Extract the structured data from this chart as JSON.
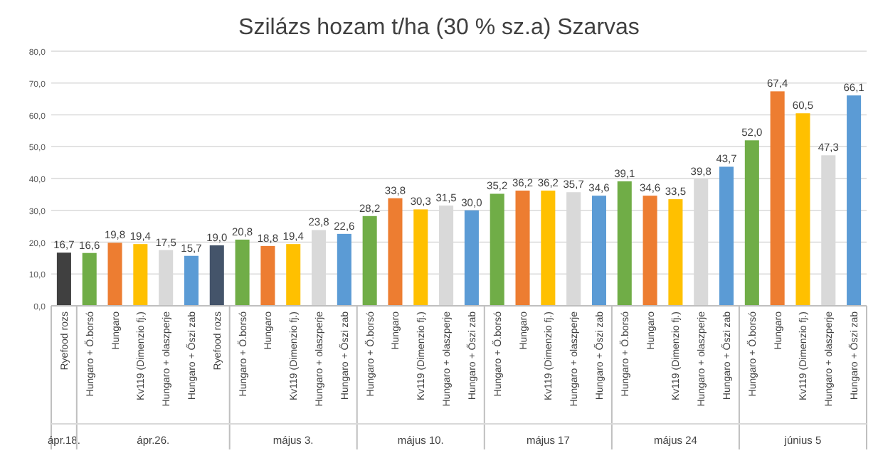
{
  "chart_data": {
    "type": "bar",
    "title": "Szilázs hozam t/ha (30 % sz.a)   Szarvas",
    "categories": [
      "Ryefood rozs",
      "Hungaro + Ő.borsó",
      "Hungaro",
      "Kv119 (Dimenzio fj.)",
      "Hungaro + olaszperje",
      "Hungaro + Őszi zab",
      "Ryefood rozs",
      "Hungaro + Ő.borsó",
      "Hungaro",
      "Kv119 (Dimenzio fj.)",
      "Hungaro + olaszperje",
      "Hungaro + Őszi zab",
      "Hungaro + Ő.borsó",
      "Hungaro",
      "Kv119 (Dimenzio fj.)",
      "Hungaro + olaszperje",
      "Hungaro + Őszi zab",
      "Hungaro + Ő.borsó",
      "Hungaro",
      "Kv119 (Dimenzio fj.)",
      "Hungaro + olaszperje",
      "Hungaro + Őszi zab",
      "Hungaro + Ő.borsó",
      "Hungaro",
      "Kv119 (Dimenzio fj.)",
      "Hungaro + olaszperje",
      "Hungaro + Őszi zab",
      "Hungaro + Ő.borsó",
      "Hungaro",
      "Kv119 (Dimenzio fj.)",
      "Hungaro + olaszperje",
      "Hungaro + Őszi zab"
    ],
    "values": [
      16.7,
      16.6,
      19.8,
      19.4,
      17.5,
      15.7,
      19.0,
      20.8,
      18.8,
      19.4,
      23.8,
      22.6,
      28.2,
      33.8,
      30.3,
      31.5,
      30.0,
      35.2,
      36.2,
      36.2,
      35.7,
      34.6,
      39.1,
      34.6,
      33.5,
      39.8,
      43.7,
      52.0,
      67.4,
      60.5,
      47.3,
      66.1
    ],
    "value_labels": [
      "16,7",
      "16,6",
      "19,8",
      "19,4",
      "17,5",
      "15,7",
      "19,0",
      "20,8",
      "18,8",
      "19,4",
      "23,8",
      "22,6",
      "28,2",
      "33,8",
      "30,3",
      "31,5",
      "30,0",
      "35,2",
      "36,2",
      "36,2",
      "35,7",
      "34,6",
      "39,1",
      "34,6",
      "33,5",
      "39,8",
      "43,7",
      "52,0",
      "67,4",
      "60,5",
      "47,3",
      "66,1"
    ],
    "colors": [
      "#404040",
      "#70ad47",
      "#ed7d31",
      "#ffc000",
      "#d9d9d9",
      "#5b9bd5",
      "#44546a",
      "#70ad47",
      "#ed7d31",
      "#ffc000",
      "#d9d9d9",
      "#5b9bd5",
      "#70ad47",
      "#ed7d31",
      "#ffc000",
      "#d9d9d9",
      "#5b9bd5",
      "#70ad47",
      "#ed7d31",
      "#ffc000",
      "#d9d9d9",
      "#5b9bd5",
      "#70ad47",
      "#ed7d31",
      "#ffc000",
      "#d9d9d9",
      "#5b9bd5",
      "#70ad47",
      "#ed7d31",
      "#ffc000",
      "#d9d9d9",
      "#5b9bd5"
    ],
    "ylim": [
      0,
      80
    ],
    "yticks": [
      {
        "value": 0,
        "label": "0,0"
      },
      {
        "value": 10,
        "label": "10,0"
      },
      {
        "value": 20,
        "label": "20,0"
      },
      {
        "value": 30,
        "label": "30,0"
      },
      {
        "value": 40,
        "label": "40,0"
      },
      {
        "value": 50,
        "label": "50,0"
      },
      {
        "value": 60,
        "label": "60,0"
      },
      {
        "value": 70,
        "label": "70,0"
      },
      {
        "value": 80,
        "label": "80,0"
      }
    ],
    "grid": "y",
    "annotations": [
      "ápr.18.",
      "ápr.26.",
      "május 3.",
      "május 10.",
      "május 17",
      "május 24",
      "június 5"
    ]
  }
}
